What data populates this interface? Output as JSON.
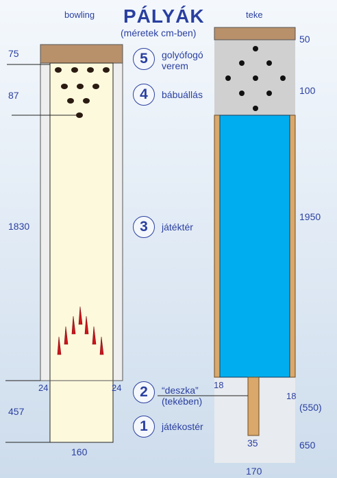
{
  "title": "PÁLYÁK",
  "subtitle": "(méretek cm-ben)",
  "columns": {
    "left": "bowling",
    "right": "teke"
  },
  "bowling_dims": {
    "pit": "75",
    "pin_deck": "87",
    "lane": "1830",
    "gutter_left": "24",
    "gutter_right": "24",
    "approach": "457",
    "width": "160"
  },
  "teke_dims": {
    "pit": "50",
    "pin_deck": "100",
    "lane": "1950",
    "board_left": "18",
    "board_right": "18",
    "board_alt": "(550)",
    "approach": "650",
    "board_width": "35",
    "width": "170"
  },
  "steps": [
    {
      "num": "5",
      "label_line1": "golyófogó",
      "label_line2": "verem"
    },
    {
      "num": "4",
      "label_line1": "bábuállás",
      "label_line2": ""
    },
    {
      "num": "3",
      "label_line1": "játéktér",
      "label_line2": ""
    },
    {
      "num": "2",
      "label_line1": "“deszka”",
      "label_line2": "(tekében)"
    },
    {
      "num": "1",
      "label_line1": "játékostér",
      "label_line2": ""
    }
  ],
  "colors": {
    "text": "#2a3fa0",
    "pit_brown": "#b8906a",
    "lane_cream": "#fdf9dd",
    "teke_lane_blue": "#00aeef",
    "teke_rail": "#d9a86a",
    "pin_deck_gray": "#d0d0d0",
    "pin_red": "#d0141b"
  }
}
